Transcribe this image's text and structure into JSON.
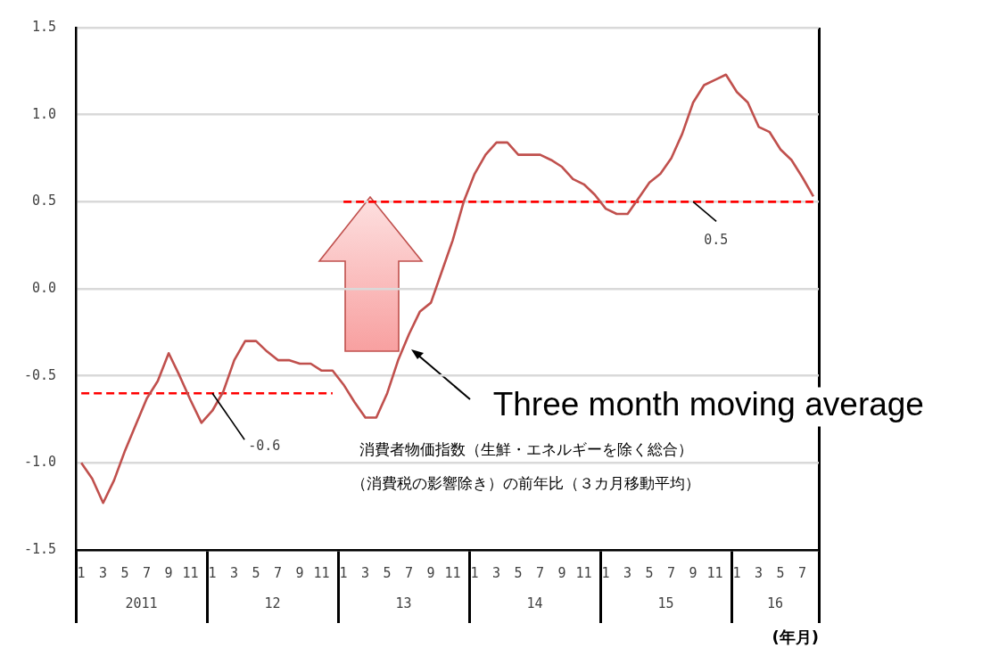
{
  "chart_data": {
    "type": "line",
    "xlabel": "(年月)",
    "x": [
      "2011-01",
      "2011-02",
      "2011-03",
      "2011-04",
      "2011-05",
      "2011-06",
      "2011-07",
      "2011-08",
      "2011-09",
      "2011-10",
      "2011-11",
      "2011-12",
      "2012-01",
      "2012-02",
      "2012-03",
      "2012-04",
      "2012-05",
      "2012-06",
      "2012-07",
      "2012-08",
      "2012-09",
      "2012-10",
      "2012-11",
      "2012-12",
      "2013-01",
      "2013-02",
      "2013-03",
      "2013-04",
      "2013-05",
      "2013-06",
      "2013-07",
      "2013-08",
      "2013-09",
      "2013-10",
      "2013-11",
      "2013-12",
      "2014-01",
      "2014-02",
      "2014-03",
      "2014-04",
      "2014-05",
      "2014-06",
      "2014-07",
      "2014-08",
      "2014-09",
      "2014-10",
      "2014-11",
      "2014-12",
      "2015-01",
      "2015-02",
      "2015-03",
      "2015-04",
      "2015-05",
      "2015-06",
      "2015-07",
      "2015-08",
      "2015-09",
      "2015-10",
      "2015-11",
      "2015-12",
      "2016-01",
      "2016-02",
      "2016-03",
      "2016-04",
      "2016-05",
      "2016-06",
      "2016-07",
      "2016-08"
    ],
    "series": [
      {
        "color": "#c0504d",
        "line_style": "solid",
        "values": [
          -1.0,
          -1.09,
          -1.23,
          -1.1,
          -0.93,
          -0.78,
          -0.63,
          -0.53,
          -0.37,
          -0.5,
          -0.64,
          -0.77,
          -0.7,
          -0.59,
          -0.41,
          -0.3,
          -0.3,
          -0.36,
          -0.41,
          -0.41,
          -0.43,
          -0.43,
          -0.47,
          -0.47,
          -0.55,
          -0.65,
          -0.74,
          -0.74,
          -0.6,
          -0.41,
          -0.26,
          -0.13,
          -0.08,
          0.1,
          0.28,
          0.5,
          0.66,
          0.77,
          0.84,
          0.84,
          0.77,
          0.77,
          0.77,
          0.74,
          0.7,
          0.63,
          0.6,
          0.54,
          0.46,
          0.43,
          0.43,
          0.52,
          0.61,
          0.66,
          0.75,
          0.89,
          1.07,
          1.17,
          1.2,
          1.23,
          1.13,
          1.07,
          0.93,
          0.9,
          0.8,
          0.74,
          0.64,
          0.53
        ]
      },
      {
        "type": "line",
        "color": "#ff0000",
        "line_style": "dashed",
        "x": [
          "2011-01",
          "2012-12"
        ],
        "values": [
          -0.6,
          -0.6
        ]
      },
      {
        "type": "line",
        "color": "#ff0000",
        "line_style": "dashed",
        "x": [
          "2013-01",
          "2016-08"
        ],
        "values": [
          0.5,
          0.5
        ]
      }
    ],
    "xlim": [
      "2011-01-01",
      "2016-09-01"
    ],
    "xticks": [
      {
        "value": "2011-01",
        "label": "1"
      },
      {
        "value": "2011-03",
        "label": "3"
      },
      {
        "value": "2011-05",
        "label": "5"
      },
      {
        "value": "2011-07",
        "label": "7"
      },
      {
        "value": "2011-09",
        "label": "9"
      },
      {
        "value": "2011-11",
        "label": "11"
      },
      {
        "value": "2012-01",
        "label": "1"
      },
      {
        "value": "2012-03",
        "label": "3"
      },
      {
        "value": "2012-05",
        "label": "5"
      },
      {
        "value": "2012-07",
        "label": "7"
      },
      {
        "value": "2012-09",
        "label": "9"
      },
      {
        "value": "2012-11",
        "label": "11"
      },
      {
        "value": "2013-01",
        "label": "1"
      },
      {
        "value": "2013-03",
        "label": "3"
      },
      {
        "value": "2013-05",
        "label": "5"
      },
      {
        "value": "2013-07",
        "label": "7"
      },
      {
        "value": "2013-09",
        "label": "9"
      },
      {
        "value": "2013-11",
        "label": "11"
      },
      {
        "value": "2014-01",
        "label": "1"
      },
      {
        "value": "2014-03",
        "label": "3"
      },
      {
        "value": "2014-05",
        "label": "5"
      },
      {
        "value": "2014-07",
        "label": "7"
      },
      {
        "value": "2014-09",
        "label": "9"
      },
      {
        "value": "2014-11",
        "label": "11"
      },
      {
        "value": "2015-01",
        "label": "1"
      },
      {
        "value": "2015-03",
        "label": "3"
      },
      {
        "value": "2015-05",
        "label": "5"
      },
      {
        "value": "2015-07",
        "label": "7"
      },
      {
        "value": "2015-09",
        "label": "9"
      },
      {
        "value": "2015-11",
        "label": "11"
      },
      {
        "value": "2016-01",
        "label": "1"
      },
      {
        "value": "2016-03",
        "label": "3"
      },
      {
        "value": "2016-05",
        "label": "5"
      },
      {
        "value": "2016-07",
        "label": "7"
      }
    ],
    "x2lim": [
      "2011-01-01",
      "2016-09-01"
    ],
    "x2ticks": [
      {
        "value": "2011-07-01",
        "label": "2011"
      },
      {
        "value": "2012-07-01",
        "label": "12"
      },
      {
        "value": "2013-07-01",
        "label": "13"
      },
      {
        "value": "2014-07-01",
        "label": "14"
      },
      {
        "value": "2015-07-01",
        "label": "15"
      },
      {
        "value": "2016-05-01",
        "label": "16"
      }
    ],
    "ylim": [
      -1.5,
      1.5
    ],
    "yticks": [
      {
        "value": -1.5,
        "label": "-1.5"
      },
      {
        "value": -1,
        "label": "-1.0"
      },
      {
        "value": -0.5,
        "label": "-0.5"
      },
      {
        "value": 0,
        "label": "0.0"
      },
      {
        "value": 0.5,
        "label": "0.5"
      },
      {
        "value": 1,
        "label": "1.0"
      },
      {
        "value": 1.5,
        "label": "1.5"
      }
    ],
    "grid": "y",
    "legend": false,
    "annotations": [
      {
        "text": "-0.6",
        "x": "2012-01",
        "y": -0.6
      },
      {
        "text": "0.5",
        "x": "2015-09",
        "y": 0.5
      },
      {
        "text": "Three month moving average",
        "x": "2013-07",
        "y": -0.34
      },
      "消費者物価指数（生鮮・エネルギーを除く総合）",
      "（消費税の影響除き）の前年比（３カ月移動平均）"
    ]
  }
}
